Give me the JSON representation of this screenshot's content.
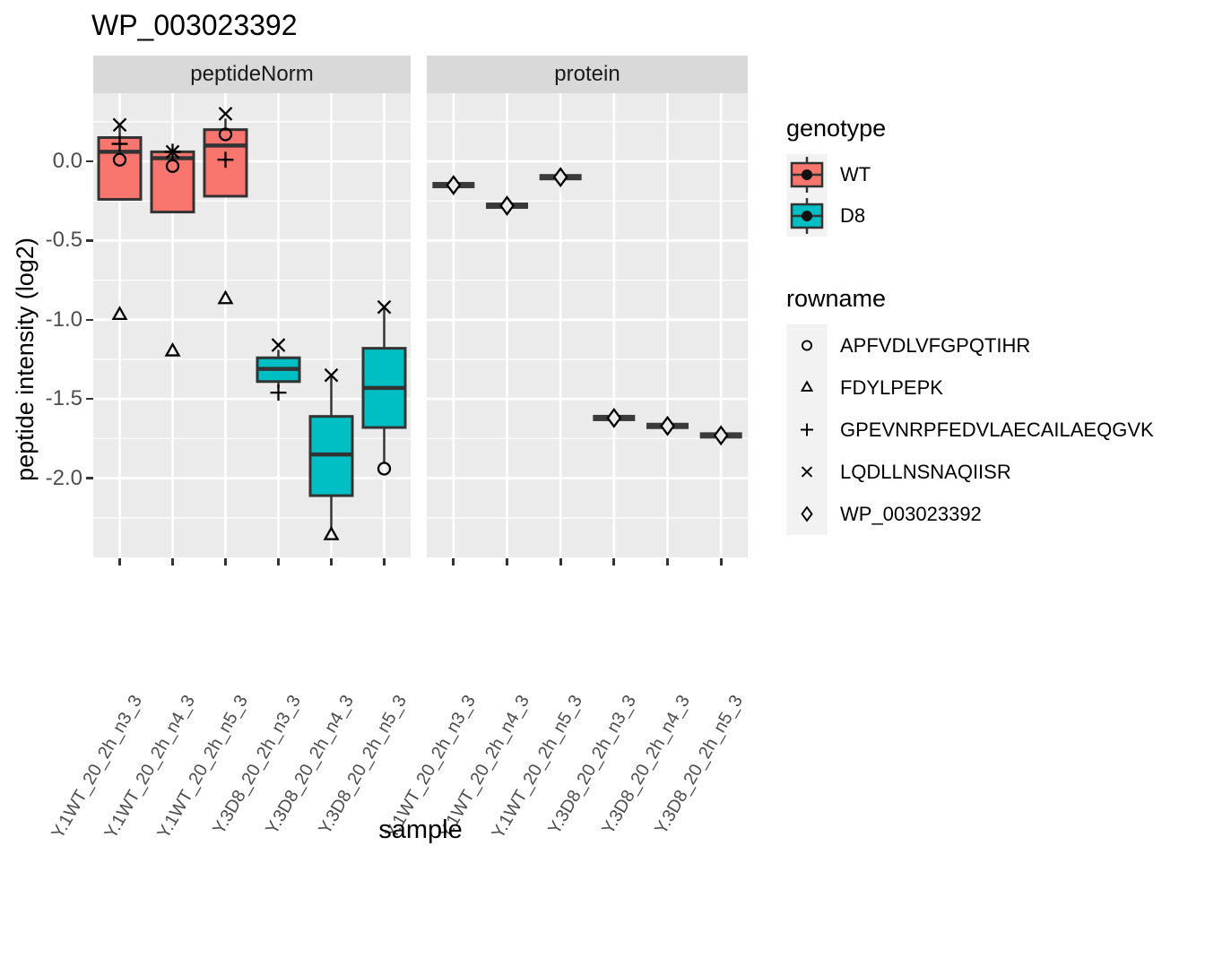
{
  "title": "WP_003023392",
  "colors": {
    "wt": "#F8766D",
    "d8": "#00BFC4",
    "panel_bg": "#EBEBEB",
    "strip_bg": "#D9D9D9",
    "grid": "#FFFFFF",
    "box_border": "#333333",
    "flat_bar": "#3A3A3A",
    "key_bg": "#F2F2F2",
    "tick_text": "#4D4D4D",
    "marker": "#000000"
  },
  "legend": {
    "genotype": {
      "title": "genotype",
      "items": [
        {
          "label": "WT",
          "color": "#F8766D"
        },
        {
          "label": "D8",
          "color": "#00BFC4"
        }
      ]
    },
    "rowname": {
      "title": "rowname",
      "items": [
        {
          "shape": "circle",
          "label": "APFVDLVFGPQTIHR"
        },
        {
          "shape": "triangle",
          "label": "FDYLPEPK"
        },
        {
          "shape": "plus",
          "label": "GPEVNRPFEDVLAECAILAEQGVK"
        },
        {
          "shape": "x",
          "label": "LQDLLNSNAQIISR"
        },
        {
          "shape": "diamond",
          "label": "WP_003023392"
        }
      ]
    }
  },
  "chart_data": {
    "type": "boxplot",
    "title": "WP_003023392",
    "xlabel": "sample",
    "ylabel": "peptide intensity (log2)",
    "ylim": [
      -2.5,
      0.43
    ],
    "yticks": [
      0,
      -0.5,
      -1,
      -1.5,
      -2
    ],
    "ytick_labels": [
      "0.0",
      "-0.5",
      "-1.0",
      "-1.5",
      "-2.0"
    ],
    "yminor": [
      0.25,
      -0.25,
      -0.75,
      -1.25,
      -1.75,
      -2.25
    ],
    "genotype_colors": {
      "WT": "#F8766D",
      "D8": "#00BFC4"
    },
    "shape_legend": {
      "circle": "APFVDLVFGPQTIHR",
      "triangle": "FDYLPEPK",
      "plus": "GPEVNRPFEDVLAECAILAEQGVK",
      "x": "LQDLLNSNAQIISR",
      "diamond": "WP_003023392"
    },
    "x_labels": [
      "Y.1WT_20_2h_n3_3",
      "Y.1WT_20_2h_n4_3",
      "Y.1WT_20_2h_n5_3",
      "Y.3D8_20_2h_n3_3",
      "Y.3D8_20_2h_n4_3",
      "Y.3D8_20_2h_n5_3"
    ],
    "facets": [
      {
        "label": "peptideNorm",
        "boxes": [
          {
            "genotype": "WT",
            "q1": -0.24,
            "median": 0.06,
            "q3": 0.15,
            "whisker_low": -0.24,
            "whisker_high": 0.22,
            "points": [
              {
                "shape": "x",
                "rowname": "LQDLLNSNAQIISR",
                "value": 0.23
              },
              {
                "shape": "plus",
                "rowname": "GPEVNRPFEDVLAECAILAEQGVK",
                "value": 0.11
              },
              {
                "shape": "circle",
                "rowname": "APFVDLVFGPQTIHR",
                "value": 0.01
              },
              {
                "shape": "triangle",
                "rowname": "FDYLPEPK",
                "value": -0.97
              }
            ]
          },
          {
            "genotype": "WT",
            "q1": -0.32,
            "median": 0.02,
            "q3": 0.06,
            "whisker_low": -0.32,
            "whisker_high": 0.06,
            "points": [
              {
                "shape": "x",
                "rowname": "LQDLLNSNAQIISR",
                "value": 0.06
              },
              {
                "shape": "plus",
                "rowname": "GPEVNRPFEDVLAECAILAEQGVK",
                "value": 0.06
              },
              {
                "shape": "circle",
                "rowname": "APFVDLVFGPQTIHR",
                "value": -0.03
              },
              {
                "shape": "triangle",
                "rowname": "FDYLPEPK",
                "value": -1.2
              }
            ]
          },
          {
            "genotype": "WT",
            "q1": -0.22,
            "median": 0.1,
            "q3": 0.2,
            "whisker_low": -0.22,
            "whisker_high": 0.27,
            "points": [
              {
                "shape": "x",
                "rowname": "LQDLLNSNAQIISR",
                "value": 0.3
              },
              {
                "shape": "circle",
                "rowname": "APFVDLVFGPQTIHR",
                "value": 0.17
              },
              {
                "shape": "plus",
                "rowname": "GPEVNRPFEDVLAECAILAEQGVK",
                "value": 0.01
              },
              {
                "shape": "triangle",
                "rowname": "FDYLPEPK",
                "value": -0.87
              }
            ]
          },
          {
            "genotype": "D8",
            "q1": -1.39,
            "median": -1.31,
            "q3": -1.24,
            "whisker_low": -1.43,
            "whisker_high": -1.19,
            "points": [
              {
                "shape": "x",
                "rowname": "LQDLLNSNAQIISR",
                "value": -1.16
              },
              {
                "shape": "plus",
                "rowname": "GPEVNRPFEDVLAECAILAEQGVK",
                "value": -1.46
              }
            ]
          },
          {
            "genotype": "D8",
            "q1": -2.11,
            "median": -1.85,
            "q3": -1.61,
            "whisker_low": -2.33,
            "whisker_high": -1.36,
            "points": [
              {
                "shape": "x",
                "rowname": "LQDLLNSNAQIISR",
                "value": -1.35
              },
              {
                "shape": "triangle",
                "rowname": "FDYLPEPK",
                "value": -2.36
              }
            ]
          },
          {
            "genotype": "D8",
            "q1": -1.68,
            "median": -1.43,
            "q3": -1.18,
            "whisker_low": -1.9,
            "whisker_high": -0.92,
            "points": [
              {
                "shape": "x",
                "rowname": "LQDLLNSNAQIISR",
                "value": -0.92
              },
              {
                "shape": "circle",
                "rowname": "APFVDLVFGPQTIHR",
                "value": -1.94
              }
            ]
          }
        ]
      },
      {
        "label": "protein",
        "boxes": [
          {
            "genotype": "WT",
            "flat": true,
            "median": -0.15,
            "points": [
              {
                "shape": "diamond",
                "rowname": "WP_003023392",
                "value": -0.15
              }
            ]
          },
          {
            "genotype": "WT",
            "flat": true,
            "median": -0.28,
            "points": [
              {
                "shape": "diamond",
                "rowname": "WP_003023392",
                "value": -0.28
              }
            ]
          },
          {
            "genotype": "WT",
            "flat": true,
            "median": -0.1,
            "points": [
              {
                "shape": "diamond",
                "rowname": "WP_003023392",
                "value": -0.1
              }
            ]
          },
          {
            "genotype": "D8",
            "flat": true,
            "median": -1.62,
            "points": [
              {
                "shape": "diamond",
                "rowname": "WP_003023392",
                "value": -1.62
              }
            ]
          },
          {
            "genotype": "D8",
            "flat": true,
            "median": -1.67,
            "points": [
              {
                "shape": "diamond",
                "rowname": "WP_003023392",
                "value": -1.67
              }
            ]
          },
          {
            "genotype": "D8",
            "flat": true,
            "median": -1.73,
            "points": [
              {
                "shape": "diamond",
                "rowname": "WP_003023392",
                "value": -1.73
              }
            ]
          }
        ]
      }
    ]
  }
}
